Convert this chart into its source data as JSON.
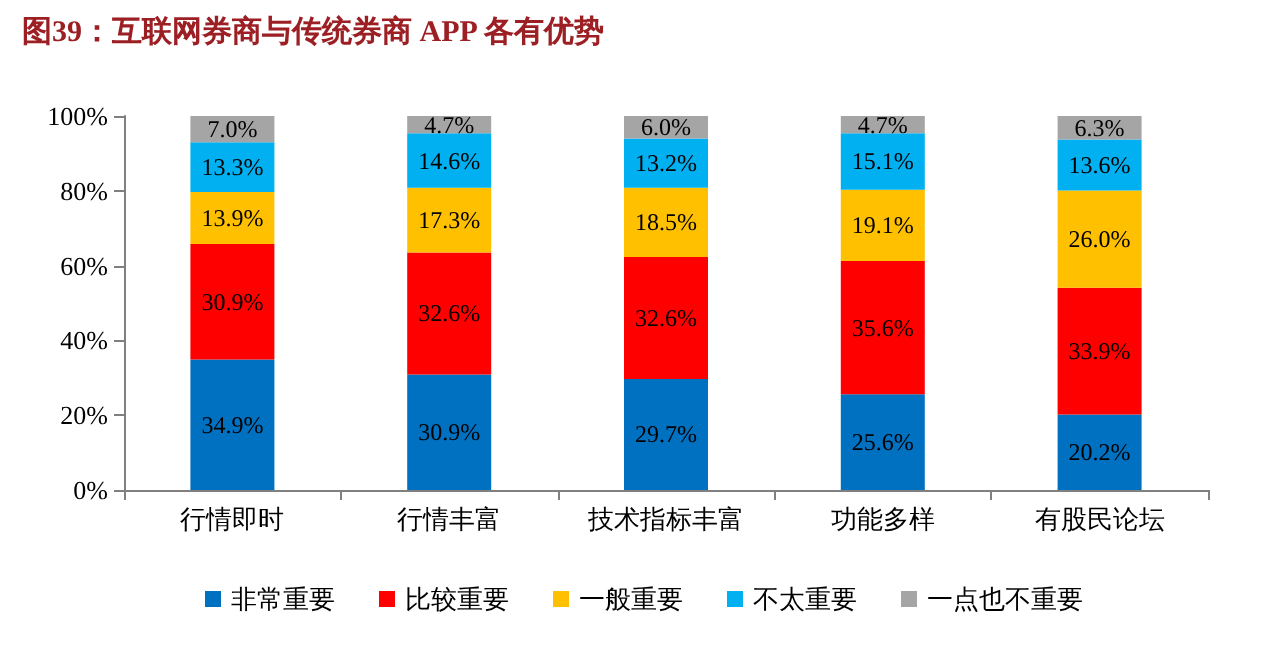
{
  "chart_data": {
    "type": "bar",
    "title": "图39：互联网券商与传统券商 APP 各有优势",
    "stacked": true,
    "legend": "bottom",
    "grid": false,
    "categories": [
      "行情即时",
      "行情丰富",
      "技术指标丰富",
      "功能多样",
      "有股民论坛"
    ],
    "ylim": [
      0,
      100
    ],
    "yticks": [
      {
        "value": 0,
        "label": "0%"
      },
      {
        "value": 20,
        "label": "20%"
      },
      {
        "value": 40,
        "label": "40%"
      },
      {
        "value": 60,
        "label": "60%"
      },
      {
        "value": 80,
        "label": "80%"
      },
      {
        "value": 100,
        "label": "100%"
      }
    ],
    "series": [
      {
        "name": "非常重要",
        "color": "#0070c0",
        "values": [
          34.9,
          30.9,
          29.7,
          25.6,
          20.2
        ],
        "value_labels": [
          "34.9%",
          "30.9%",
          "29.7%",
          "25.6%",
          "20.2%"
        ]
      },
      {
        "name": "比较重要",
        "color": "#ff0000",
        "values": [
          30.9,
          32.6,
          32.6,
          35.6,
          33.9
        ],
        "value_labels": [
          "30.9%",
          "32.6%",
          "32.6%",
          "35.6%",
          "33.9%"
        ]
      },
      {
        "name": "一般重要",
        "color": "#ffc000",
        "values": [
          13.9,
          17.3,
          18.5,
          19.1,
          26.0
        ],
        "value_labels": [
          "13.9%",
          "17.3%",
          "18.5%",
          "19.1%",
          "26.0%"
        ]
      },
      {
        "name": "不太重要",
        "color": "#00b0f0",
        "values": [
          13.3,
          14.6,
          13.2,
          15.1,
          13.6
        ],
        "value_labels": [
          "13.3%",
          "14.6%",
          "13.2%",
          "15.1%",
          "13.6%"
        ]
      },
      {
        "name": "一点也不重要",
        "color": "#a5a5a5",
        "values": [
          7.0,
          4.7,
          6.0,
          4.7,
          6.3
        ],
        "value_labels": [
          "7.0%",
          "4.7%",
          "6.0%",
          "4.7%",
          "6.3%"
        ]
      }
    ]
  }
}
